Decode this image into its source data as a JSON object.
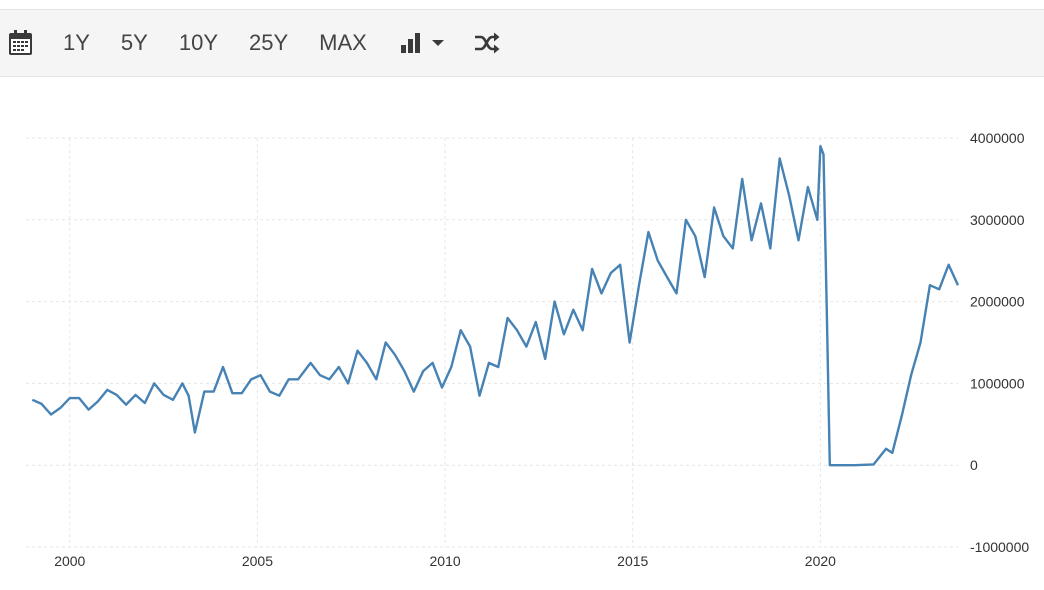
{
  "toolbar": {
    "range_buttons": [
      "1Y",
      "5Y",
      "10Y",
      "25Y",
      "MAX"
    ],
    "icons": {
      "calendar": "calendar-icon",
      "chart_type": "bar-chart-icon",
      "dropdown": "chevron-down-icon",
      "compare": "shuffle-icon"
    }
  },
  "colors": {
    "line": "#4682b4",
    "grid": "#e6e6e6",
    "toolbar_bg": "#f5f5f5"
  },
  "chart_data": {
    "type": "line",
    "title": "",
    "xlabel": "",
    "ylabel": "",
    "x_ticks": [
      "2000",
      "2005",
      "2010",
      "2015",
      "2020"
    ],
    "y_ticks": [
      "4000000",
      "3000000",
      "2000000",
      "1000000",
      "0",
      "-1000000"
    ],
    "ylim": [
      -1000000,
      4000000
    ],
    "xlim": [
      "1998-11",
      "2023-09"
    ],
    "grid": true,
    "y_axis_side": "right",
    "series": [
      {
        "points": [
          [
            "1999-01",
            800000
          ],
          [
            "1999-04",
            750000
          ],
          [
            "1999-07",
            620000
          ],
          [
            "1999-10",
            700000
          ],
          [
            "2000-01",
            820000
          ],
          [
            "2000-04",
            820000
          ],
          [
            "2000-07",
            680000
          ],
          [
            "2000-10",
            780000
          ],
          [
            "2001-01",
            920000
          ],
          [
            "2001-04",
            860000
          ],
          [
            "2001-07",
            740000
          ],
          [
            "2001-10",
            860000
          ],
          [
            "2002-01",
            760000
          ],
          [
            "2002-04",
            1000000
          ],
          [
            "2002-07",
            860000
          ],
          [
            "2002-10",
            800000
          ],
          [
            "2003-01",
            1000000
          ],
          [
            "2003-03",
            850000
          ],
          [
            "2003-05",
            400000
          ],
          [
            "2003-08",
            900000
          ],
          [
            "2003-11",
            900000
          ],
          [
            "2004-02",
            1200000
          ],
          [
            "2004-05",
            880000
          ],
          [
            "2004-08",
            880000
          ],
          [
            "2004-11",
            1050000
          ],
          [
            "2005-02",
            1100000
          ],
          [
            "2005-05",
            900000
          ],
          [
            "2005-08",
            850000
          ],
          [
            "2005-11",
            1050000
          ],
          [
            "2006-02",
            1050000
          ],
          [
            "2006-06",
            1250000
          ],
          [
            "2006-09",
            1100000
          ],
          [
            "2006-12",
            1050000
          ],
          [
            "2007-03",
            1200000
          ],
          [
            "2007-06",
            1000000
          ],
          [
            "2007-09",
            1400000
          ],
          [
            "2007-12",
            1250000
          ],
          [
            "2008-03",
            1050000
          ],
          [
            "2008-06",
            1500000
          ],
          [
            "2008-09",
            1350000
          ],
          [
            "2008-12",
            1150000
          ],
          [
            "2009-03",
            900000
          ],
          [
            "2009-06",
            1150000
          ],
          [
            "2009-09",
            1250000
          ],
          [
            "2009-12",
            950000
          ],
          [
            "2010-03",
            1200000
          ],
          [
            "2010-06",
            1650000
          ],
          [
            "2010-09",
            1450000
          ],
          [
            "2010-12",
            850000
          ],
          [
            "2011-03",
            1250000
          ],
          [
            "2011-06",
            1200000
          ],
          [
            "2011-09",
            1800000
          ],
          [
            "2011-12",
            1650000
          ],
          [
            "2012-03",
            1450000
          ],
          [
            "2012-06",
            1750000
          ],
          [
            "2012-09",
            1300000
          ],
          [
            "2012-12",
            2000000
          ],
          [
            "2013-03",
            1600000
          ],
          [
            "2013-06",
            1900000
          ],
          [
            "2013-09",
            1650000
          ],
          [
            "2013-12",
            2400000
          ],
          [
            "2014-03",
            2100000
          ],
          [
            "2014-06",
            2350000
          ],
          [
            "2014-09",
            2450000
          ],
          [
            "2014-12",
            1500000
          ],
          [
            "2015-03",
            2200000
          ],
          [
            "2015-06",
            2850000
          ],
          [
            "2015-09",
            2500000
          ],
          [
            "2015-12",
            2300000
          ],
          [
            "2016-03",
            2100000
          ],
          [
            "2016-06",
            3000000
          ],
          [
            "2016-09",
            2800000
          ],
          [
            "2016-12",
            2300000
          ],
          [
            "2017-03",
            3150000
          ],
          [
            "2017-06",
            2800000
          ],
          [
            "2017-09",
            2650000
          ],
          [
            "2017-12",
            3500000
          ],
          [
            "2018-03",
            2750000
          ],
          [
            "2018-06",
            3200000
          ],
          [
            "2018-09",
            2650000
          ],
          [
            "2018-12",
            3750000
          ],
          [
            "2019-03",
            3300000
          ],
          [
            "2019-06",
            2750000
          ],
          [
            "2019-09",
            3400000
          ],
          [
            "2019-12",
            3000000
          ],
          [
            "2020-01",
            3900000
          ],
          [
            "2020-02",
            3800000
          ],
          [
            "2020-03",
            2000000
          ],
          [
            "2020-04",
            0
          ],
          [
            "2020-12",
            0
          ],
          [
            "2021-06",
            10000
          ],
          [
            "2021-10",
            200000
          ],
          [
            "2021-12",
            150000
          ],
          [
            "2022-03",
            600000
          ],
          [
            "2022-06",
            1100000
          ],
          [
            "2022-09",
            1500000
          ],
          [
            "2022-12",
            2200000
          ],
          [
            "2023-03",
            2150000
          ],
          [
            "2023-06",
            2450000
          ],
          [
            "2023-09",
            2200000
          ]
        ]
      }
    ]
  }
}
